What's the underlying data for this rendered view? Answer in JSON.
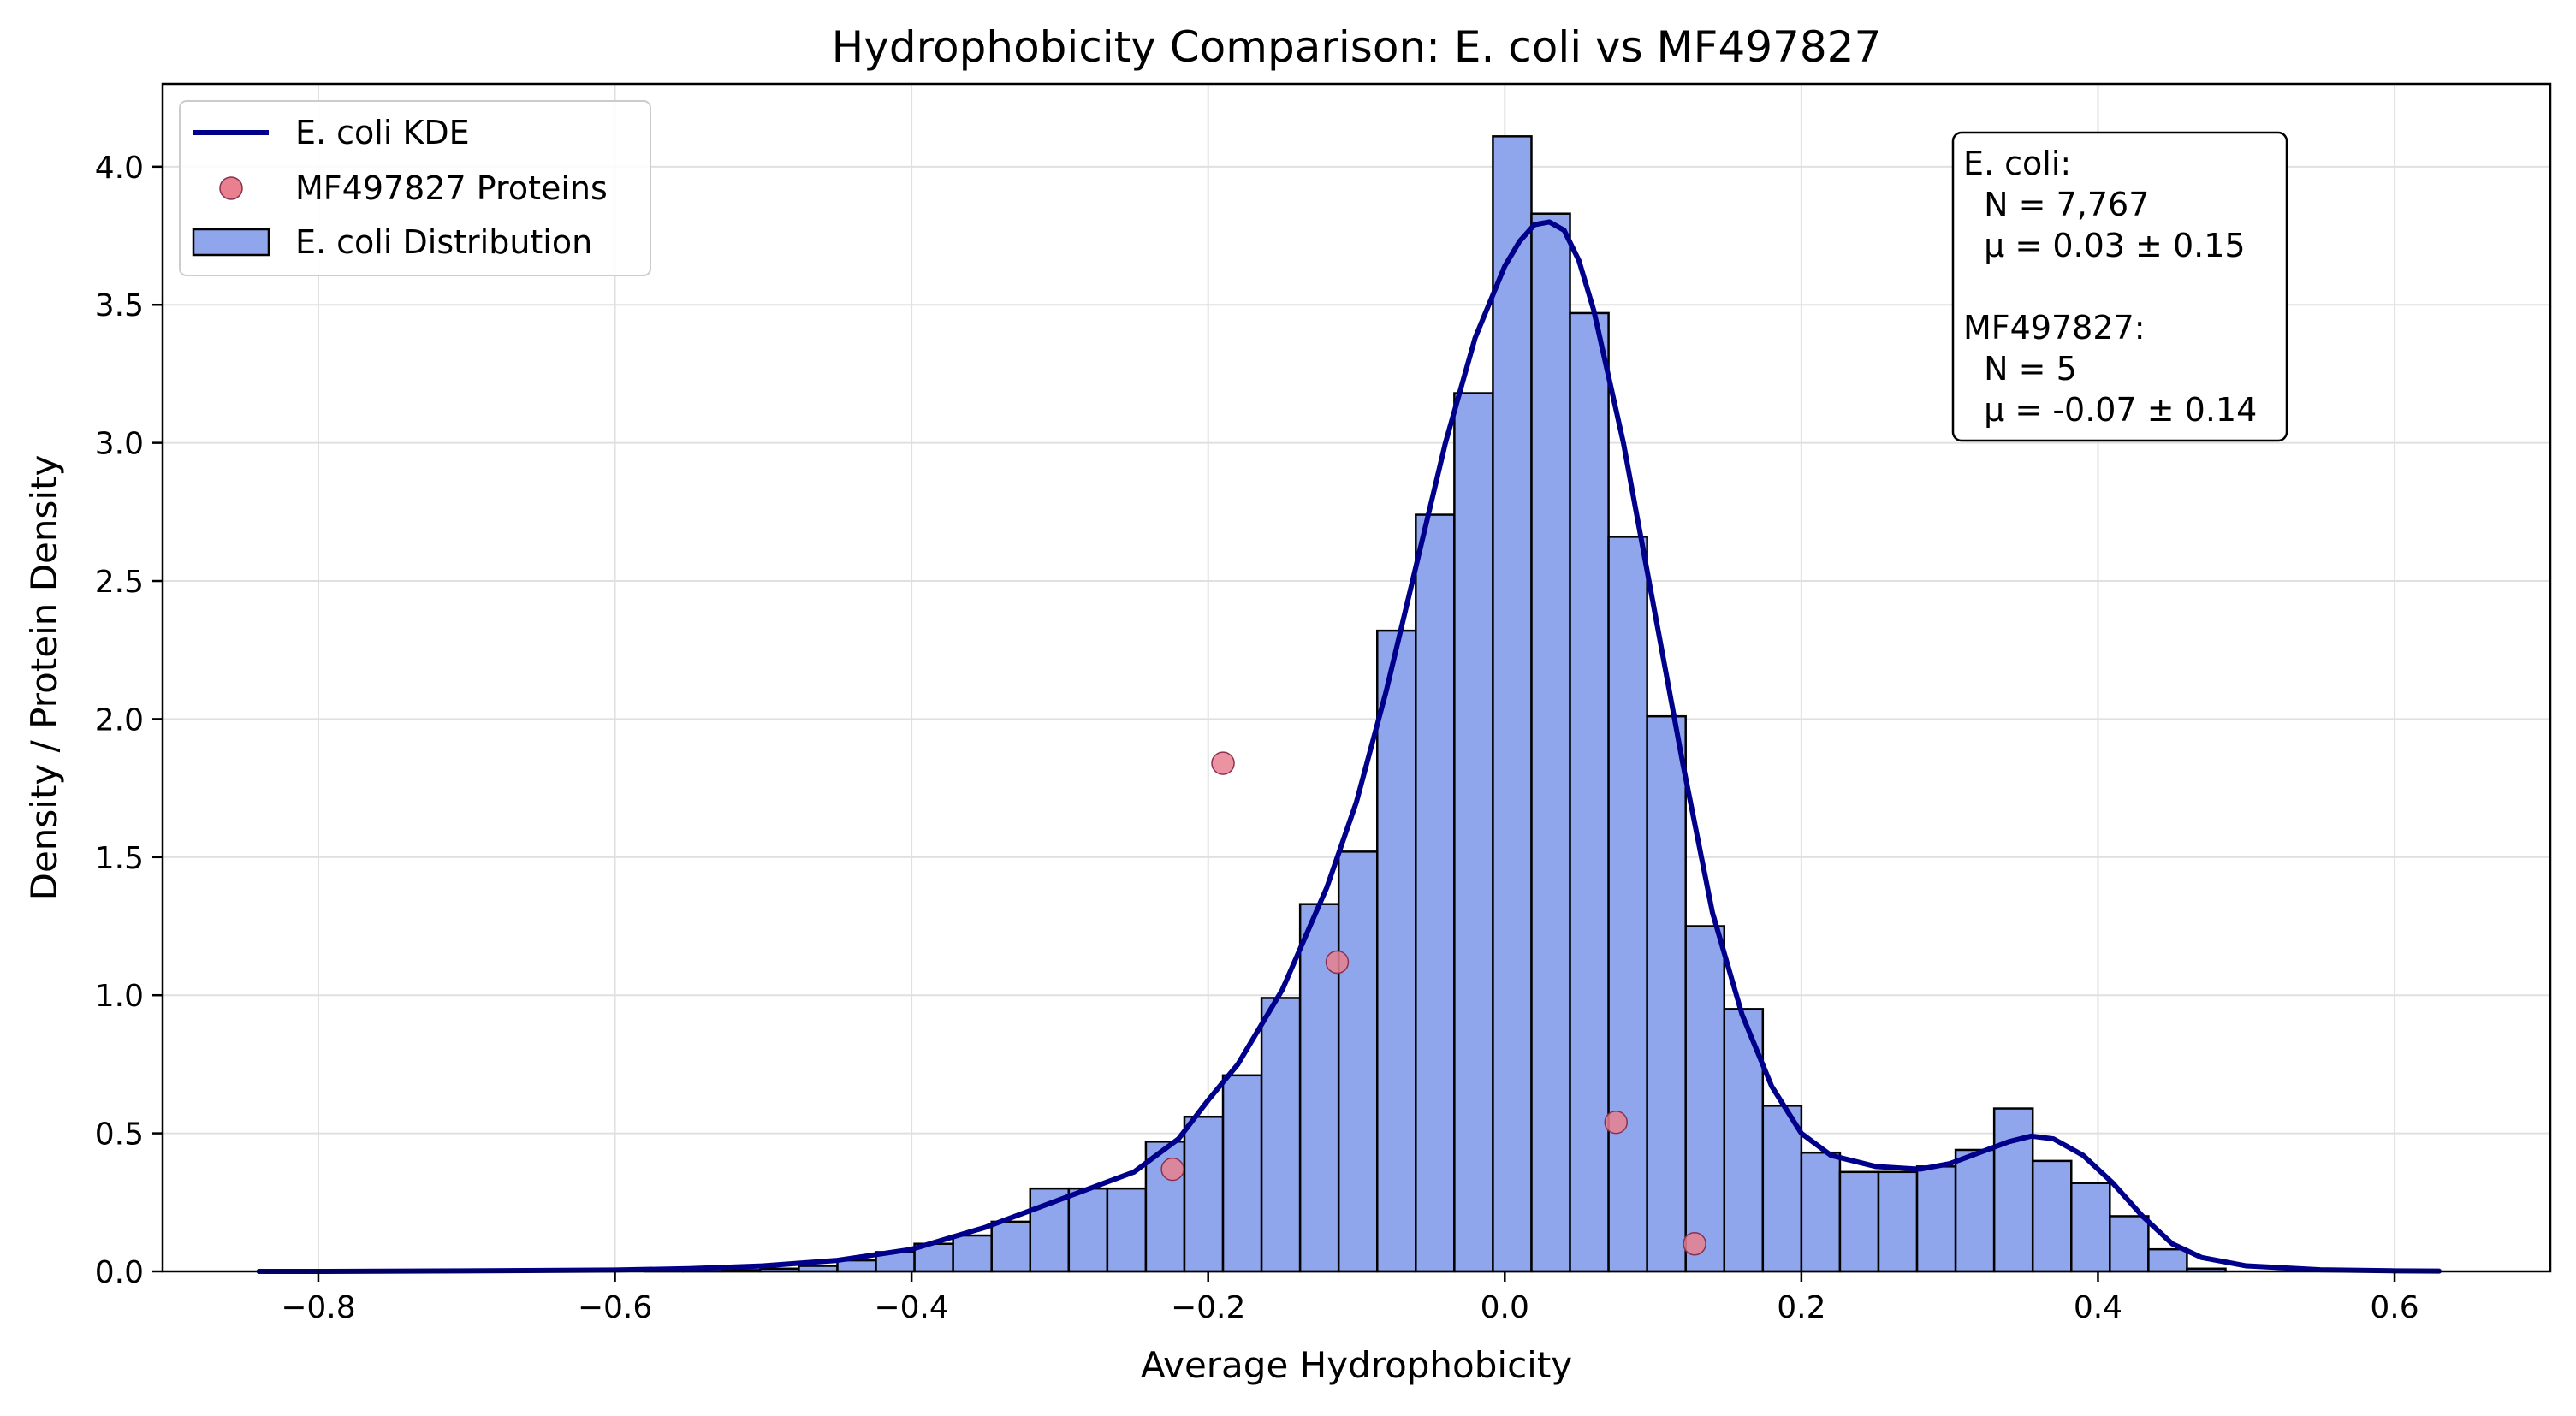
{
  "chart_data": {
    "type": "bar",
    "title": "Hydrophobicity Comparison: E. coli vs MF497827",
    "xlabel": "Average Hydrophobicity",
    "ylabel": "Density / Protein Density",
    "xlim": [
      -0.905,
      0.705
    ],
    "ylim": [
      0,
      4.3
    ],
    "grid": true,
    "legend_position": "top-left",
    "x_ticks": [
      "−0.8",
      "−0.6",
      "−0.4",
      "−0.2",
      "0.0",
      "0.2",
      "0.4",
      "0.6"
    ],
    "x_tick_values": [
      -0.8,
      -0.6,
      -0.4,
      -0.2,
      0.0,
      0.2,
      0.4,
      0.6
    ],
    "y_ticks": [
      "0.0",
      "0.5",
      "1.0",
      "1.5",
      "2.0",
      "2.5",
      "3.0",
      "3.5",
      "4.0"
    ],
    "y_tick_values": [
      0,
      0.5,
      1.0,
      1.5,
      2.0,
      2.5,
      3.0,
      3.5,
      4.0
    ],
    "colors": {
      "bar_fill": "#8fa6ec",
      "bar_edge": "#000000",
      "kde": "#00008b",
      "points": "#e8808f",
      "points_edge": "#8b3050",
      "grid": "#e0e0e0"
    },
    "legend": [
      {
        "label": "E. coli KDE",
        "kind": "line"
      },
      {
        "label": "MF497827 Proteins",
        "kind": "marker"
      },
      {
        "label": "E. coli Distribution",
        "kind": "patch"
      }
    ],
    "histogram": {
      "name": "E. coli Distribution",
      "bin_edges": [
        -0.84,
        -0.814,
        -0.788,
        -0.762,
        -0.736,
        -0.71,
        -0.684,
        -0.658,
        -0.632,
        -0.606,
        -0.58,
        -0.554,
        -0.528,
        -0.502,
        -0.476,
        -0.45,
        -0.424,
        -0.398,
        -0.372,
        -0.346,
        -0.32,
        -0.294,
        -0.268,
        -0.242,
        -0.216,
        -0.19,
        -0.164,
        -0.138,
        -0.112,
        -0.086,
        -0.06,
        -0.034,
        -0.008,
        0.018,
        0.044,
        0.07,
        0.096,
        0.122,
        0.148,
        0.174,
        0.2,
        0.226,
        0.252,
        0.278,
        0.304,
        0.33,
        0.356,
        0.382,
        0.408,
        0.434,
        0.46,
        0.486
      ],
      "values": [
        0,
        0,
        0,
        0,
        0,
        0,
        0,
        0,
        0,
        0,
        0.005,
        0.01,
        0.005,
        0.01,
        0.02,
        0.04,
        0.07,
        0.1,
        0.13,
        0.18,
        0.3,
        0.3,
        0.3,
        0.47,
        0.56,
        0.71,
        0.99,
        1.33,
        1.52,
        2.32,
        2.74,
        3.18,
        4.11,
        3.83,
        3.47,
        2.66,
        2.01,
        1.25,
        0.95,
        0.6,
        0.43,
        0.36,
        0.36,
        0.38,
        0.44,
        0.59,
        0.4,
        0.32,
        0.2,
        0.08,
        0.01
      ]
    },
    "kde": {
      "name": "E. coli KDE",
      "x": [
        -0.84,
        -0.8,
        -0.7,
        -0.6,
        -0.55,
        -0.5,
        -0.45,
        -0.4,
        -0.35,
        -0.3,
        -0.27,
        -0.25,
        -0.22,
        -0.2,
        -0.18,
        -0.15,
        -0.12,
        -0.1,
        -0.08,
        -0.06,
        -0.04,
        -0.02,
        0.0,
        0.01,
        0.02,
        0.03,
        0.04,
        0.05,
        0.06,
        0.08,
        0.1,
        0.12,
        0.14,
        0.16,
        0.18,
        0.2,
        0.22,
        0.25,
        0.28,
        0.3,
        0.32,
        0.34,
        0.355,
        0.37,
        0.39,
        0.41,
        0.43,
        0.45,
        0.47,
        0.5,
        0.55,
        0.6,
        0.63
      ],
      "y": [
        0.0,
        0.0,
        0.002,
        0.005,
        0.01,
        0.02,
        0.04,
        0.08,
        0.16,
        0.26,
        0.32,
        0.36,
        0.48,
        0.62,
        0.75,
        1.02,
        1.39,
        1.7,
        2.1,
        2.55,
        3.0,
        3.38,
        3.64,
        3.73,
        3.79,
        3.8,
        3.77,
        3.66,
        3.48,
        3.0,
        2.42,
        1.84,
        1.3,
        0.93,
        0.67,
        0.5,
        0.42,
        0.38,
        0.37,
        0.39,
        0.43,
        0.47,
        0.49,
        0.48,
        0.42,
        0.32,
        0.2,
        0.1,
        0.05,
        0.02,
        0.006,
        0.002,
        0.001
      ]
    },
    "points": {
      "name": "MF497827 Proteins",
      "x": [
        -0.19,
        -0.113,
        -0.224,
        0.075,
        0.128
      ],
      "y": [
        1.84,
        1.12,
        0.37,
        0.54,
        0.1
      ]
    },
    "stats_box": [
      "E. coli:",
      "  N = 7,767",
      "  μ = 0.03 ± 0.15",
      "",
      "MF497827:",
      "  N = 5",
      "  μ = -0.07 ± 0.14"
    ]
  }
}
